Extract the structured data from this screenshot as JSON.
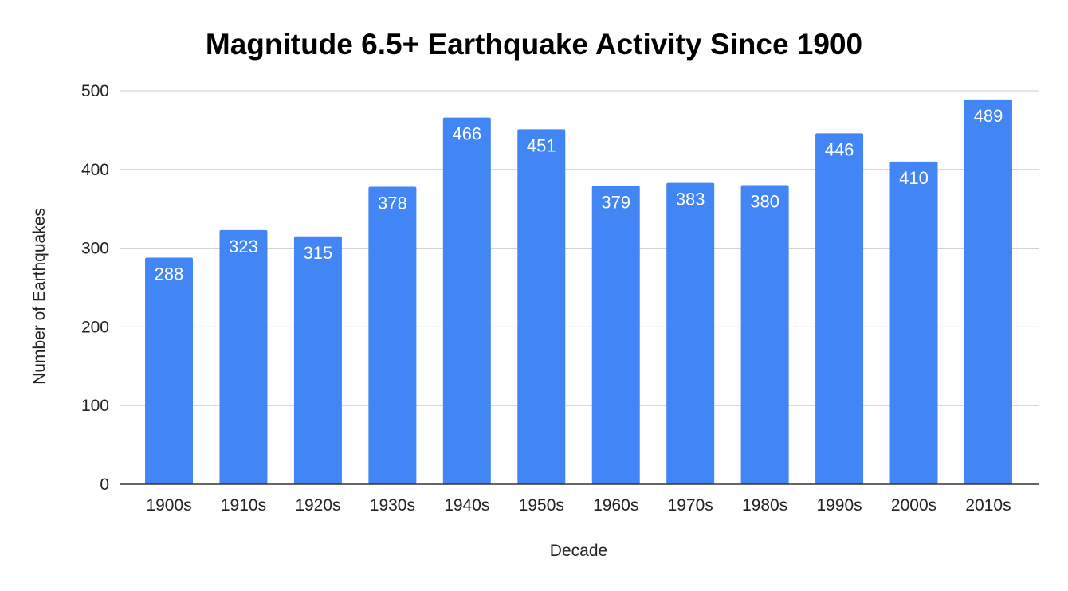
{
  "chart_data": {
    "type": "bar",
    "title": "Magnitude 6.5+ Earthquake Activity Since 1900",
    "xlabel": "Decade",
    "ylabel": "Number of Earthquakes",
    "categories": [
      "1900s",
      "1910s",
      "1920s",
      "1930s",
      "1940s",
      "1950s",
      "1960s",
      "1970s",
      "1980s",
      "1990s",
      "2000s",
      "2010s"
    ],
    "values": [
      288,
      323,
      315,
      378,
      466,
      451,
      379,
      383,
      380,
      446,
      410,
      489
    ],
    "ylim": [
      0,
      500
    ],
    "yticks": [
      0,
      100,
      200,
      300,
      400,
      500
    ],
    "grid": true,
    "legend": "none",
    "colors": {
      "bar": "#4285F4",
      "grid": "#cccccc",
      "axis": "#333333"
    }
  }
}
